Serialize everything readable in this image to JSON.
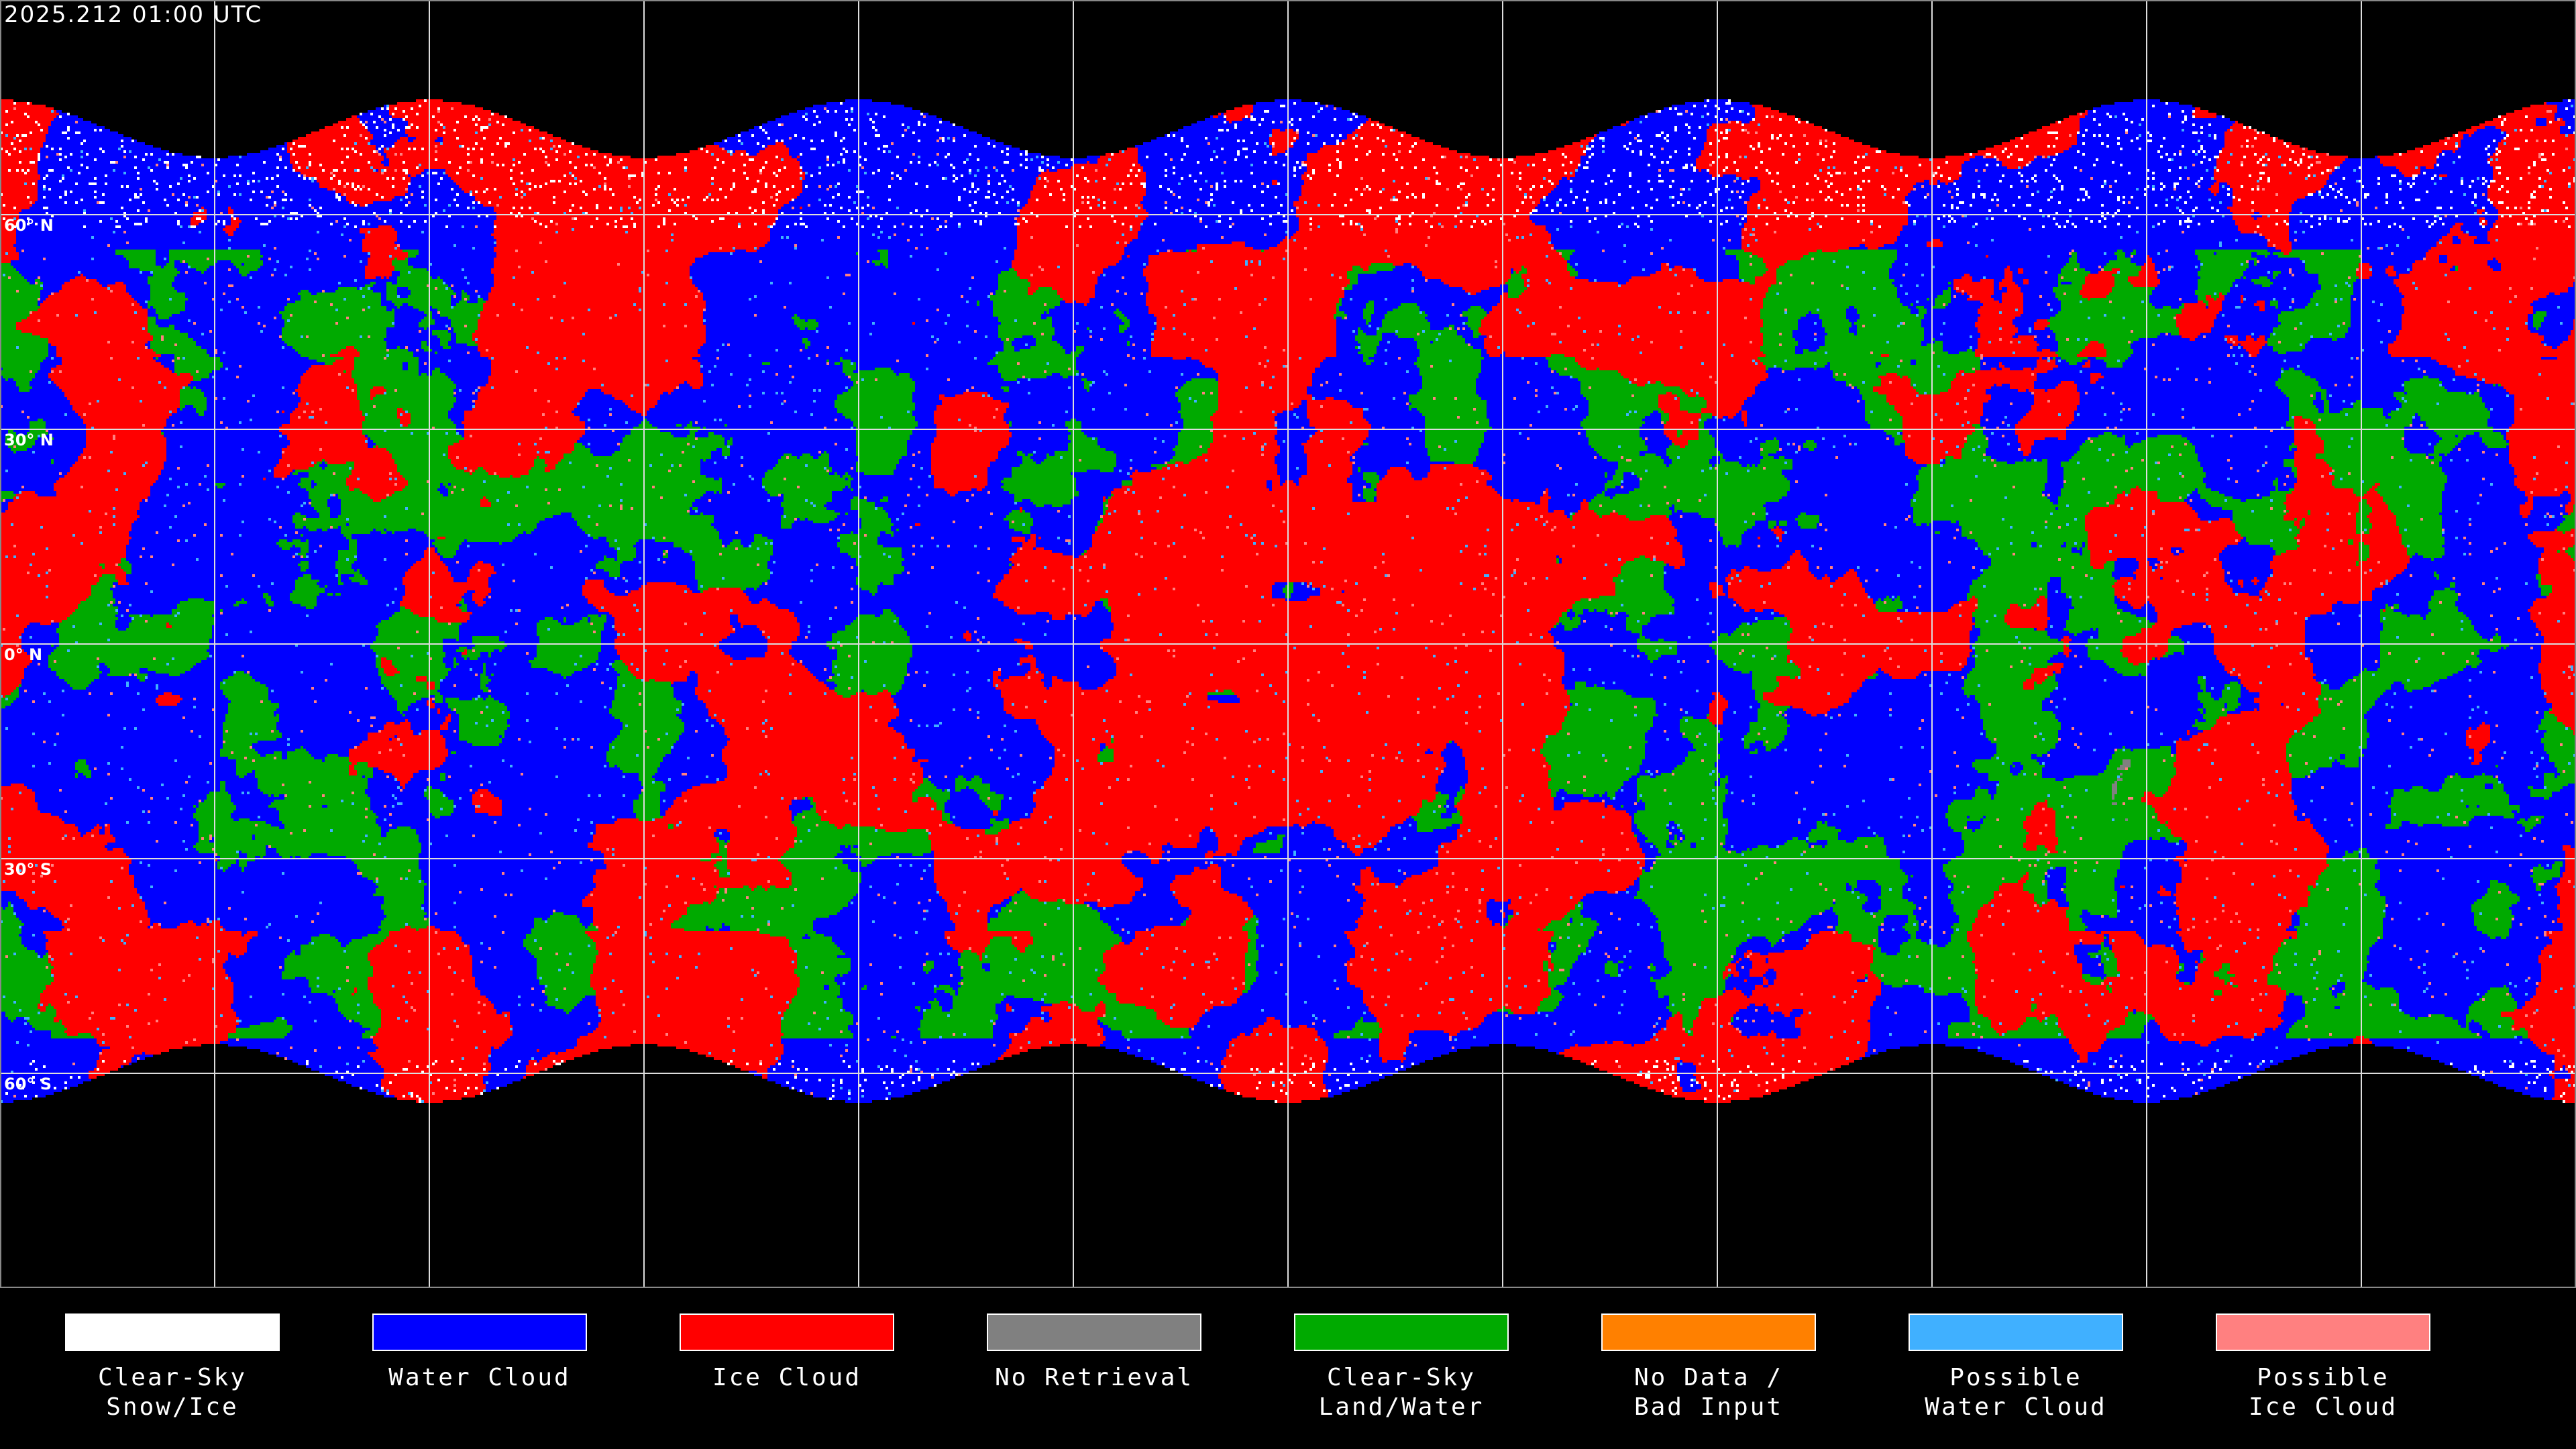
{
  "header": {
    "timestamp": "2025.212 01:00 UTC"
  },
  "map": {
    "projection": "equirectangular",
    "gridline_spacing_degrees": 30,
    "latitude_labels": [
      "60° N",
      "30° N",
      "0° N",
      "30° S",
      "60° S"
    ],
    "background_color": "#000000",
    "coastline_color": "#ffffff"
  },
  "legend": {
    "items": [
      {
        "label": "Clear-Sky\nSnow/Ice",
        "color": "#ffffff"
      },
      {
        "label": "Water Cloud",
        "color": "#0000ff"
      },
      {
        "label": "Ice Cloud",
        "color": "#ff0000"
      },
      {
        "label": "No Retrieval",
        "color": "#808080"
      },
      {
        "label": "Clear-Sky\nLand/Water",
        "color": "#00aa00"
      },
      {
        "label": "No Data /\nBad Input",
        "color": "#ff8000"
      },
      {
        "label": "Possible\nWater Cloud",
        "color": "#40b0ff"
      },
      {
        "label": "Possible\nIce Cloud",
        "color": "#ff8080"
      }
    ]
  }
}
